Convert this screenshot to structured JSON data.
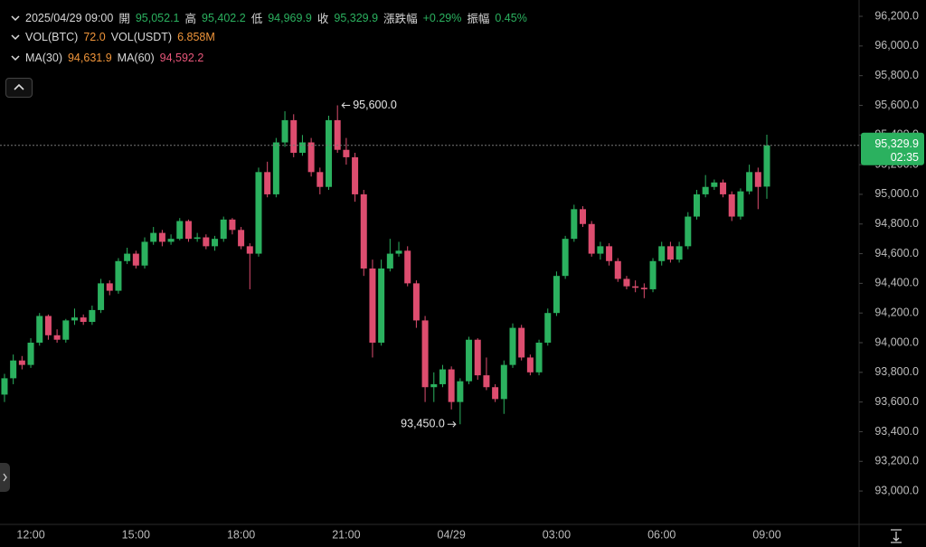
{
  "header": {
    "datetime": "2025/04/29 09:00",
    "open_label": "開",
    "open": "95,052.1",
    "high_label": "高",
    "high": "95,402.2",
    "low_label": "低",
    "low": "94,969.9",
    "close_label": "收",
    "close": "95,329.9",
    "change_label": "漲跌幅",
    "change": "+0.29%",
    "amplitude_label": "振幅",
    "amplitude": "0.45%",
    "vol_btc_label": "VOL(BTC)",
    "vol_btc": "72.0",
    "vol_usdt_label": "VOL(USDT)",
    "vol_usdt": "6.858M",
    "ma30_label": "MA(30)",
    "ma30": "94,631.9",
    "ma60_label": "MA(60)",
    "ma60": "94,592.2"
  },
  "chart_data": {
    "type": "candlestick",
    "up_color": "#2bb15f",
    "down_color": "#dd4d6f",
    "categories": [
      null,
      null,
      null,
      "12:00",
      null,
      null,
      null,
      null,
      null,
      null,
      null,
      null,
      null,
      null,
      null,
      "15:00",
      null,
      null,
      null,
      null,
      null,
      null,
      null,
      null,
      null,
      null,
      null,
      "18:00",
      null,
      null,
      null,
      null,
      null,
      null,
      null,
      null,
      null,
      null,
      null,
      "21:00",
      null,
      null,
      null,
      null,
      null,
      null,
      null,
      null,
      null,
      null,
      null,
      "04/29",
      null,
      null,
      null,
      null,
      null,
      null,
      null,
      null,
      null,
      null,
      null,
      "03:00",
      null,
      null,
      null,
      null,
      null,
      null,
      null,
      null,
      null,
      null,
      null,
      "06:00",
      null,
      null,
      null,
      null,
      null,
      null,
      null,
      null,
      null,
      null,
      null,
      "09:00"
    ],
    "open": [
      93650,
      93760,
      93880,
      93850,
      94000,
      94180,
      94050,
      94020,
      94150,
      94170,
      94140,
      94220,
      94400,
      94350,
      94550,
      94600,
      94520,
      94680,
      94740,
      94680,
      94700,
      94820,
      94700,
      94710,
      94650,
      94700,
      94830,
      94760,
      94650,
      94600,
      95150,
      95000,
      95350,
      95500,
      95280,
      95350,
      95150,
      95050,
      95500,
      95300,
      95250,
      95000,
      94500,
      94000,
      94500,
      94600,
      94620,
      94400,
      94150,
      93700,
      93720,
      93820,
      93600,
      93740,
      94020,
      93780,
      93700,
      93620,
      93850,
      94100,
      93900,
      93800,
      94000,
      94200,
      94450,
      94700,
      94900,
      94800,
      94600,
      94650,
      94550,
      94430,
      94380,
      94370,
      94360,
      94550,
      94650,
      94560,
      94650,
      94850,
      95000,
      95050,
      95080,
      95000,
      94850,
      95020,
      95150,
      95052.1
    ],
    "high": [
      93790,
      93920,
      93910,
      94030,
      94200,
      94190,
      94090,
      94160,
      94230,
      94190,
      94250,
      94430,
      94420,
      94570,
      94640,
      94620,
      94710,
      94780,
      94760,
      94730,
      94840,
      94830,
      94740,
      94730,
      94720,
      94850,
      94840,
      94780,
      94670,
      95180,
      95220,
      95380,
      95560,
      95540,
      95400,
      95380,
      95180,
      95530,
      95600,
      95380,
      95280,
      95030,
      94560,
      94560,
      94700,
      94680,
      94650,
      94420,
      94180,
      93800,
      93850,
      93840,
      93760,
      94040,
      94030,
      93900,
      93720,
      93880,
      94130,
      94120,
      93920,
      94020,
      94230,
      94480,
      94720,
      94930,
      94920,
      94820,
      94680,
      94670,
      94570,
      94450,
      94420,
      94400,
      94570,
      94680,
      94680,
      94680,
      94880,
      95030,
      95130,
      95100,
      95100,
      95020,
      95040,
      95200,
      95180,
      95402.2
    ],
    "low": [
      93600,
      93720,
      93820,
      93830,
      93980,
      94020,
      94000,
      94000,
      94120,
      94120,
      94120,
      94200,
      94320,
      94330,
      94530,
      94500,
      94500,
      94660,
      94650,
      94660,
      94690,
      94680,
      94680,
      94630,
      94620,
      94680,
      94730,
      94630,
      94360,
      94580,
      94980,
      94980,
      95320,
      95250,
      95260,
      95120,
      95000,
      95030,
      95280,
      95200,
      94950,
      94450,
      93900,
      93980,
      94480,
      94580,
      94380,
      94100,
      93600,
      93600,
      93700,
      93550,
      93450,
      93720,
      93750,
      93680,
      93600,
      93520,
      93830,
      93880,
      93780,
      93780,
      93980,
      94180,
      94430,
      94680,
      94780,
      94580,
      94560,
      94520,
      94410,
      94360,
      94340,
      94300,
      94340,
      94520,
      94540,
      94540,
      94630,
      94830,
      94980,
      95030,
      94980,
      94820,
      94830,
      95000,
      94900,
      94969.9
    ],
    "close": [
      93760,
      93880,
      93850,
      94000,
      94180,
      94050,
      94020,
      94150,
      94170,
      94140,
      94220,
      94400,
      94350,
      94550,
      94600,
      94520,
      94680,
      94740,
      94680,
      94700,
      94820,
      94700,
      94710,
      94650,
      94700,
      94830,
      94760,
      94650,
      94600,
      95150,
      95000,
      95350,
      95500,
      95280,
      95350,
      95150,
      95050,
      95500,
      95300,
      95250,
      95000,
      94500,
      94000,
      94500,
      94600,
      94620,
      94400,
      94150,
      93700,
      93720,
      93820,
      93600,
      93740,
      94020,
      93780,
      93700,
      93620,
      93850,
      94100,
      93900,
      93800,
      94000,
      94200,
      94450,
      94700,
      94900,
      94800,
      94600,
      94650,
      94550,
      94430,
      94380,
      94370,
      94360,
      94550,
      94650,
      94560,
      94650,
      94850,
      95000,
      95050,
      95080,
      95000,
      94850,
      95020,
      95150,
      95050,
      95329.9
    ],
    "ylim": [
      92775,
      96310
    ],
    "yticks": [
      {
        "value": 93000,
        "label": "93,000.0"
      },
      {
        "value": 93200,
        "label": "93,200.0"
      },
      {
        "value": 93400,
        "label": "93,400.0"
      },
      {
        "value": 93600,
        "label": "93,600.0"
      },
      {
        "value": 93800,
        "label": "93,800.0"
      },
      {
        "value": 94000,
        "label": "94,000.0"
      },
      {
        "value": 94200,
        "label": "94,200.0"
      },
      {
        "value": 94400,
        "label": "94,400.0"
      },
      {
        "value": 94600,
        "label": "94,600.0"
      },
      {
        "value": 94800,
        "label": "94,800.0"
      },
      {
        "value": 95000,
        "label": "95,000.0"
      },
      {
        "value": 95200,
        "label": "95,200.0"
      },
      {
        "value": 95400,
        "label": "95,400.0"
      },
      {
        "value": 95600,
        "label": "95,600.0"
      },
      {
        "value": 95800,
        "label": "95,800.0"
      },
      {
        "value": 96000,
        "label": "96,000.0"
      },
      {
        "value": 96200,
        "label": "96,200.0"
      }
    ],
    "max_label": "95,600.0",
    "min_label": "93,450.0",
    "last_price_label": "95,329.9",
    "countdown": "02:35"
  }
}
